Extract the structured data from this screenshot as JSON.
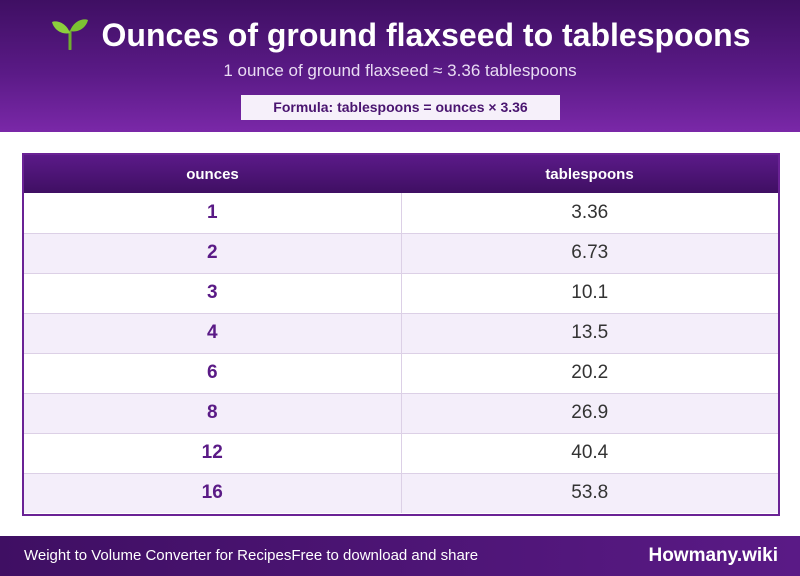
{
  "header": {
    "icon": "seedling-icon",
    "title": "Ounces of ground flaxseed to tablespoons",
    "subtitle": "1 ounce of ground flaxseed ≈ 3.36 tablespoons",
    "formula": "Formula: tablespoons = ounces × 3.36"
  },
  "table": {
    "columns": [
      "ounces",
      "tablespoons"
    ],
    "rows": [
      {
        "ounces": "1",
        "tablespoons": "3.36"
      },
      {
        "ounces": "2",
        "tablespoons": "6.73"
      },
      {
        "ounces": "3",
        "tablespoons": "10.1"
      },
      {
        "ounces": "4",
        "tablespoons": "13.5"
      },
      {
        "ounces": "6",
        "tablespoons": "20.2"
      },
      {
        "ounces": "8",
        "tablespoons": "26.9"
      },
      {
        "ounces": "12",
        "tablespoons": "40.4"
      },
      {
        "ounces": "16",
        "tablespoons": "53.8"
      }
    ]
  },
  "footer": {
    "left_text": "Weight to Volume Converter for RecipesFree to download and share",
    "brand": "Howmany.wiki"
  },
  "colors": {
    "brand_purple": "#5a1a86",
    "dark_purple": "#3f0f63",
    "row_alt": "#f4eefa"
  }
}
